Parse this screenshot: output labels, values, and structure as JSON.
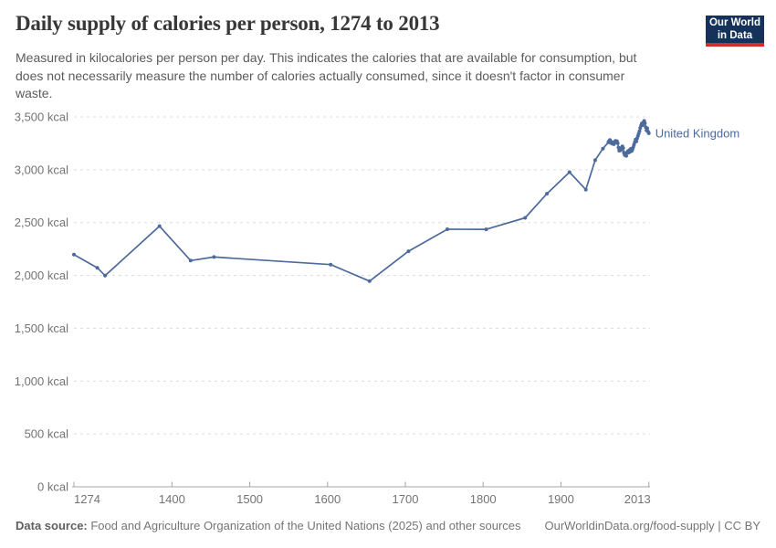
{
  "header": {
    "title": "Daily supply of calories per person, 1274 to 2013",
    "subtitle_lines": [
      "Measured in kilocalories per person per day. This indicates the calories that are available for consumption, but",
      "does not necessarily measure the number of calories actually consumed, since it doesn't factor in consumer",
      "waste."
    ]
  },
  "logo": {
    "line1": "Our World",
    "line2": "in Data"
  },
  "chart_data": {
    "type": "line",
    "title": "Daily supply of calories per person, 1274 to 2013",
    "xlabel": "",
    "ylabel": "",
    "xlim": [
      1274,
      2013
    ],
    "ylim": [
      0,
      3500
    ],
    "grid": "horizontal-dashed",
    "legend_position": "end-of-line",
    "x_ticks": [
      {
        "value": 1274,
        "label": "1274",
        "align": "start"
      },
      {
        "value": 1400,
        "label": "1400",
        "align": "middle"
      },
      {
        "value": 1500,
        "label": "1500",
        "align": "middle"
      },
      {
        "value": 1600,
        "label": "1600",
        "align": "middle"
      },
      {
        "value": 1700,
        "label": "1700",
        "align": "middle"
      },
      {
        "value": 1800,
        "label": "1800",
        "align": "middle"
      },
      {
        "value": 1900,
        "label": "1900",
        "align": "middle"
      },
      {
        "value": 2013,
        "label": "2013",
        "align": "end"
      }
    ],
    "y_ticks": [
      {
        "value": 0,
        "label": "0 kcal"
      },
      {
        "value": 500,
        "label": "500 kcal"
      },
      {
        "value": 1000,
        "label": "1,000 kcal"
      },
      {
        "value": 1500,
        "label": "1,500 kcal"
      },
      {
        "value": 2000,
        "label": "2,000 kcal"
      },
      {
        "value": 2500,
        "label": "2,500 kcal"
      },
      {
        "value": 3000,
        "label": "3,000 kcal"
      },
      {
        "value": 3500,
        "label": "3,500 kcal"
      }
    ],
    "series": [
      {
        "name": "United Kingdom",
        "color": "#4C6A9C",
        "points": [
          [
            1274,
            2198
          ],
          [
            1304,
            2072
          ],
          [
            1314,
            1998
          ],
          [
            1384,
            2466
          ],
          [
            1424,
            2141
          ],
          [
            1454,
            2174
          ],
          [
            1604,
            2103
          ],
          [
            1654,
            1946
          ],
          [
            1704,
            2229
          ],
          [
            1754,
            2437
          ],
          [
            1804,
            2436
          ],
          [
            1854,
            2545
          ],
          [
            1882,
            2773
          ],
          [
            1911,
            2977
          ],
          [
            1932,
            2812
          ],
          [
            1944,
            3090
          ],
          [
            1954,
            3200
          ],
          [
            1961,
            3260
          ],
          [
            1962,
            3272
          ],
          [
            1963,
            3282
          ],
          [
            1964,
            3255
          ],
          [
            1965,
            3263
          ],
          [
            1966,
            3248
          ],
          [
            1967,
            3258
          ],
          [
            1968,
            3242
          ],
          [
            1969,
            3255
          ],
          [
            1970,
            3274
          ],
          [
            1971,
            3262
          ],
          [
            1972,
            3270
          ],
          [
            1973,
            3252
          ],
          [
            1974,
            3210
          ],
          [
            1975,
            3180
          ],
          [
            1976,
            3195
          ],
          [
            1977,
            3185
          ],
          [
            1978,
            3208
          ],
          [
            1979,
            3222
          ],
          [
            1980,
            3205
          ],
          [
            1981,
            3160
          ],
          [
            1982,
            3140
          ],
          [
            1983,
            3158
          ],
          [
            1984,
            3132
          ],
          [
            1985,
            3162
          ],
          [
            1986,
            3175
          ],
          [
            1987,
            3162
          ],
          [
            1988,
            3185
          ],
          [
            1989,
            3172
          ],
          [
            1990,
            3198
          ],
          [
            1991,
            3178
          ],
          [
            1992,
            3192
          ],
          [
            1993,
            3215
          ],
          [
            1994,
            3238
          ],
          [
            1995,
            3262
          ],
          [
            1996,
            3285
          ],
          [
            1997,
            3268
          ],
          [
            1998,
            3298
          ],
          [
            1999,
            3320
          ],
          [
            2000,
            3342
          ],
          [
            2001,
            3365
          ],
          [
            2002,
            3395
          ],
          [
            2003,
            3418
          ],
          [
            2004,
            3438
          ],
          [
            2005,
            3422
          ],
          [
            2006,
            3448
          ],
          [
            2007,
            3462
          ],
          [
            2008,
            3440
          ],
          [
            2009,
            3402
          ],
          [
            2010,
            3372
          ],
          [
            2011,
            3392
          ],
          [
            2012,
            3362
          ],
          [
            2013,
            3345
          ]
        ]
      }
    ]
  },
  "footer": {
    "source_label": "Data source:",
    "source_text": " Food and Agriculture Organization of the United Nations (2025) and other sources",
    "link_text": "OurWorldinData.org/food-supply | CC BY"
  },
  "colors": {
    "line": "#4C6A9C",
    "grid": "#DCDCDC",
    "axis": "#A5A5A5",
    "tick_label": "#737373",
    "logo_bg": "#16325A",
    "logo_bar": "#CF3129"
  }
}
